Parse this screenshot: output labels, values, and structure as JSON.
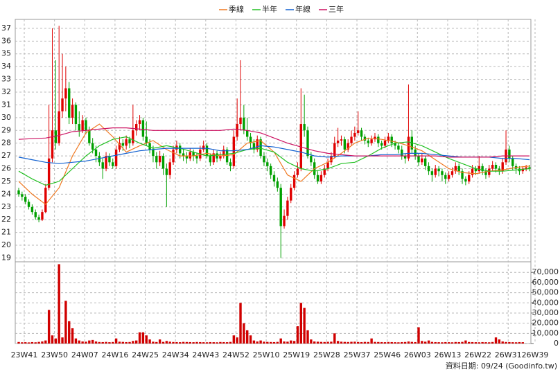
{
  "chart_data": {
    "type": "candlestick",
    "up_color": "#e00000",
    "down_color": "#00a000",
    "volume_color": "#d00000",
    "ylim": [
      18.7,
      37.7
    ],
    "yticks": [
      19,
      20,
      21,
      22,
      23,
      24,
      25,
      26,
      27,
      28,
      29,
      30,
      31,
      32,
      33,
      34,
      35,
      36,
      37
    ],
    "volume_lim": [
      0,
      79000
    ],
    "volume_ticks": [
      0,
      {
        "value": 10000,
        "label": "10,000"
      },
      {
        "value": 20000,
        "label": "20,000"
      },
      {
        "value": 30000,
        "label": "30,000"
      },
      {
        "value": 40000,
        "label": "40,000"
      },
      {
        "value": 50000,
        "label": "50,000"
      },
      {
        "value": 60000,
        "label": "60,000"
      },
      {
        "value": 70000,
        "label": "70,000"
      }
    ],
    "xlim": [
      0,
      152
    ],
    "xticks": [
      {
        "value": 0,
        "label": "23W41"
      },
      {
        "value": 9,
        "label": "23W50"
      },
      {
        "value": 18,
        "label": "24W07"
      },
      {
        "value": 27,
        "label": "24W16"
      },
      {
        "value": 36,
        "label": "24W25"
      },
      {
        "value": 45,
        "label": "24W34"
      },
      {
        "value": 54,
        "label": "24W43"
      },
      {
        "value": 63,
        "label": "24W52"
      },
      {
        "value": 72,
        "label": "25W10"
      },
      {
        "value": 81,
        "label": "25W19"
      },
      {
        "value": 90,
        "label": "25W28"
      },
      {
        "value": 99,
        "label": "25W37"
      },
      {
        "value": 108,
        "label": "25W46"
      },
      {
        "value": 117,
        "label": "26W03"
      },
      {
        "value": 126,
        "label": "26W13"
      },
      {
        "value": 135,
        "label": "26W22"
      },
      {
        "value": 144,
        "label": "26W31"
      },
      {
        "value": 152,
        "label": "26W39"
      }
    ],
    "grid": true,
    "footer": "資料日期: 09/24 (Goodinfo.tw)",
    "ohlc": [
      [
        24.3,
        24.5,
        23.8,
        24.0
      ],
      [
        24.0,
        24.2,
        23.5,
        23.8
      ],
      [
        23.8,
        24.0,
        23.2,
        23.4
      ],
      [
        23.4,
        23.6,
        22.8,
        23.0
      ],
      [
        23.0,
        23.2,
        22.4,
        22.6
      ],
      [
        22.6,
        22.8,
        22.0,
        22.2
      ],
      [
        22.2,
        22.4,
        21.8,
        22.0
      ],
      [
        22.0,
        22.8,
        21.9,
        22.6
      ],
      [
        22.6,
        24.8,
        22.5,
        24.5
      ],
      [
        24.5,
        31.0,
        24.3,
        26.8
      ],
      [
        26.8,
        37.0,
        26.5,
        29.0
      ],
      [
        29.0,
        34.5,
        27.5,
        28.0
      ],
      [
        28.0,
        37.2,
        27.8,
        30.5
      ],
      [
        30.5,
        35.0,
        30.0,
        31.5
      ],
      [
        31.5,
        34.0,
        30.5,
        32.3
      ],
      [
        32.3,
        32.8,
        29.5,
        30.0
      ],
      [
        30.0,
        31.5,
        29.5,
        31.0
      ],
      [
        31.0,
        31.2,
        29.0,
        29.5
      ],
      [
        29.5,
        30.5,
        28.5,
        29.0
      ],
      [
        29.0,
        30.2,
        28.8,
        29.8
      ],
      [
        29.8,
        30.0,
        28.7,
        29.0
      ],
      [
        29.0,
        29.3,
        27.8,
        28.0
      ],
      [
        28.0,
        28.4,
        27.2,
        27.5
      ],
      [
        27.5,
        27.8,
        26.5,
        27.0
      ],
      [
        27.0,
        27.3,
        26.2,
        26.5
      ],
      [
        26.5,
        26.8,
        25.2,
        26.0
      ],
      [
        26.0,
        27.3,
        25.8,
        27.0
      ],
      [
        27.0,
        27.2,
        26.2,
        26.5
      ],
      [
        26.5,
        26.8,
        26.0,
        26.2
      ],
      [
        26.2,
        27.8,
        26.0,
        27.5
      ],
      [
        27.5,
        28.5,
        27.3,
        28.0
      ],
      [
        28.0,
        28.3,
        27.4,
        27.8
      ],
      [
        27.8,
        28.6,
        27.5,
        28.3
      ],
      [
        28.3,
        28.5,
        27.6,
        28.0
      ],
      [
        28.0,
        31.0,
        27.8,
        29.0
      ],
      [
        29.0,
        29.8,
        28.6,
        29.5
      ],
      [
        29.5,
        30.2,
        29.0,
        29.8
      ],
      [
        29.8,
        30.0,
        28.2,
        28.5
      ],
      [
        28.5,
        29.7,
        27.8,
        28.0
      ],
      [
        28.0,
        28.3,
        27.2,
        27.5
      ],
      [
        27.5,
        27.8,
        26.5,
        27.0
      ],
      [
        27.0,
        27.3,
        26.0,
        26.5
      ],
      [
        26.5,
        27.4,
        26.2,
        27.0
      ],
      [
        27.0,
        27.2,
        25.5,
        26.0
      ],
      [
        26.0,
        26.4,
        23.0,
        25.5
      ],
      [
        25.5,
        26.8,
        25.2,
        26.5
      ],
      [
        26.5,
        27.8,
        26.3,
        27.5
      ],
      [
        27.5,
        28.2,
        27.2,
        27.8
      ],
      [
        27.8,
        28.0,
        26.8,
        27.2
      ],
      [
        27.2,
        27.5,
        26.6,
        27.0
      ],
      [
        27.0,
        27.3,
        26.4,
        26.8
      ],
      [
        26.8,
        27.6,
        26.6,
        27.3
      ],
      [
        27.3,
        27.5,
        26.6,
        27.0
      ],
      [
        27.0,
        27.2,
        26.4,
        26.8
      ],
      [
        26.8,
        27.8,
        26.6,
        27.5
      ],
      [
        27.5,
        28.2,
        27.3,
        27.8
      ],
      [
        27.8,
        28.0,
        26.8,
        27.0
      ],
      [
        27.0,
        27.2,
        26.2,
        26.5
      ],
      [
        26.5,
        27.5,
        26.3,
        27.2
      ],
      [
        27.2,
        27.4,
        26.5,
        26.8
      ],
      [
        26.8,
        27.3,
        26.6,
        27.0
      ],
      [
        27.0,
        27.8,
        26.8,
        27.5
      ],
      [
        27.5,
        27.7,
        26.3,
        26.5
      ],
      [
        26.5,
        26.8,
        25.8,
        26.2
      ],
      [
        26.2,
        29.0,
        26.0,
        28.5
      ],
      [
        28.5,
        31.5,
        28.2,
        29.5
      ],
      [
        29.5,
        34.5,
        29.0,
        30.0
      ],
      [
        30.0,
        31.0,
        28.7,
        29.0
      ],
      [
        29.0,
        30.0,
        28.2,
        28.5
      ],
      [
        28.5,
        28.8,
        27.6,
        28.0
      ],
      [
        28.0,
        28.3,
        27.2,
        27.5
      ],
      [
        27.5,
        28.6,
        27.3,
        28.3
      ],
      [
        28.3,
        28.5,
        26.8,
        27.0
      ],
      [
        27.0,
        27.3,
        26.2,
        26.5
      ],
      [
        26.5,
        26.8,
        25.8,
        26.2
      ],
      [
        26.2,
        26.4,
        25.2,
        25.5
      ],
      [
        25.5,
        25.8,
        24.6,
        25.0
      ],
      [
        25.0,
        25.3,
        24.2,
        24.5
      ],
      [
        24.5,
        24.8,
        19.0,
        21.5
      ],
      [
        21.5,
        22.8,
        21.3,
        22.3
      ],
      [
        22.3,
        23.8,
        22.0,
        23.5
      ],
      [
        23.5,
        24.8,
        23.3,
        24.5
      ],
      [
        24.5,
        25.8,
        24.3,
        25.5
      ],
      [
        25.5,
        26.5,
        25.3,
        26.0
      ],
      [
        26.0,
        32.3,
        25.8,
        29.5
      ],
      [
        29.5,
        31.8,
        28.5,
        29.0
      ],
      [
        29.0,
        29.3,
        26.8,
        27.0
      ],
      [
        27.0,
        27.3,
        26.2,
        26.5
      ],
      [
        26.5,
        26.8,
        25.2,
        25.5
      ],
      [
        25.5,
        25.8,
        24.8,
        25.0
      ],
      [
        25.0,
        25.8,
        24.8,
        25.5
      ],
      [
        25.5,
        26.3,
        25.3,
        26.0
      ],
      [
        26.0,
        26.8,
        25.8,
        26.5
      ],
      [
        26.5,
        27.3,
        26.3,
        27.0
      ],
      [
        27.0,
        28.5,
        26.8,
        28.0
      ],
      [
        28.0,
        29.2,
        27.7,
        28.2
      ],
      [
        28.2,
        28.6,
        27.8,
        28.3
      ],
      [
        28.3,
        28.5,
        27.2,
        27.5
      ],
      [
        27.5,
        28.3,
        27.3,
        28.0
      ],
      [
        28.0,
        29.0,
        27.8,
        28.5
      ],
      [
        28.5,
        29.3,
        28.2,
        28.8
      ],
      [
        28.8,
        30.5,
        28.6,
        29.0
      ],
      [
        29.0,
        29.2,
        28.2,
        28.5
      ],
      [
        28.5,
        28.7,
        27.9,
        28.2
      ],
      [
        28.2,
        28.4,
        27.7,
        28.0
      ],
      [
        28.0,
        28.6,
        27.8,
        28.3
      ],
      [
        28.3,
        28.8,
        28.1,
        28.5
      ],
      [
        28.5,
        28.7,
        27.7,
        28.0
      ],
      [
        28.0,
        28.2,
        27.5,
        27.8
      ],
      [
        27.8,
        28.5,
        27.6,
        28.2
      ],
      [
        28.2,
        28.8,
        28.0,
        28.5
      ],
      [
        28.5,
        28.7,
        27.7,
        28.0
      ],
      [
        28.0,
        28.2,
        27.5,
        27.8
      ],
      [
        27.8,
        28.0,
        27.2,
        27.5
      ],
      [
        27.5,
        27.8,
        26.7,
        27.0
      ],
      [
        27.0,
        27.2,
        26.4,
        26.8
      ],
      [
        26.8,
        32.6,
        26.6,
        28.5
      ],
      [
        28.5,
        29.0,
        27.2,
        27.5
      ],
      [
        27.5,
        27.8,
        26.7,
        27.0
      ],
      [
        27.0,
        27.2,
        26.2,
        26.5
      ],
      [
        26.5,
        27.2,
        26.3,
        26.8
      ],
      [
        26.8,
        27.0,
        25.9,
        26.2
      ],
      [
        26.2,
        26.5,
        25.5,
        25.8
      ],
      [
        25.8,
        26.0,
        25.0,
        25.5
      ],
      [
        25.5,
        26.3,
        25.3,
        26.0
      ],
      [
        26.0,
        26.2,
        25.4,
        25.8
      ],
      [
        25.8,
        26.0,
        25.0,
        25.5
      ],
      [
        25.5,
        25.7,
        24.8,
        25.2
      ],
      [
        25.2,
        25.8,
        25.0,
        25.5
      ],
      [
        25.5,
        26.1,
        25.3,
        25.8
      ],
      [
        25.8,
        26.5,
        25.6,
        26.2
      ],
      [
        26.2,
        26.4,
        25.5,
        25.8
      ],
      [
        25.8,
        26.0,
        24.8,
        25.2
      ],
      [
        25.2,
        25.4,
        24.7,
        25.0
      ],
      [
        25.0,
        25.8,
        24.8,
        25.5
      ],
      [
        25.5,
        26.3,
        25.3,
        26.0
      ],
      [
        26.0,
        26.2,
        25.5,
        25.8
      ],
      [
        25.8,
        27.0,
        25.6,
        26.2
      ],
      [
        26.2,
        26.4,
        25.5,
        25.8
      ],
      [
        25.8,
        26.0,
        25.2,
        25.5
      ],
      [
        25.5,
        26.3,
        25.3,
        26.0
      ],
      [
        26.0,
        26.6,
        25.8,
        26.3
      ],
      [
        26.3,
        26.5,
        25.7,
        26.0
      ],
      [
        26.0,
        26.2,
        25.5,
        25.8
      ],
      [
        25.8,
        26.8,
        25.6,
        26.5
      ],
      [
        26.5,
        29.0,
        26.3,
        27.5
      ],
      [
        27.5,
        27.8,
        26.5,
        26.8
      ],
      [
        26.8,
        27.0,
        25.9,
        26.2
      ],
      [
        26.2,
        26.4,
        25.6,
        26.0
      ],
      [
        26.0,
        26.2,
        25.5,
        25.8
      ],
      [
        25.8,
        26.2,
        25.6,
        26.0
      ],
      [
        26.0,
        26.3,
        25.8,
        26.1
      ],
      [
        26.1,
        26.3,
        25.8,
        26.0
      ]
    ],
    "volume": [
      1500,
      1200,
      1300,
      1100,
      1400,
      1200,
      1600,
      2000,
      3000,
      33000,
      8000,
      5000,
      78000,
      6000,
      42000,
      22000,
      15000,
      5000,
      3000,
      2000,
      1800,
      3000,
      3500,
      2000,
      1500,
      1400,
      1600,
      1300,
      1500,
      5000,
      1800,
      1600,
      1400,
      1500,
      2500,
      3000,
      11000,
      11000,
      8000,
      4000,
      1800,
      1500,
      4000,
      1600,
      2500,
      1800,
      1500,
      1400,
      1300,
      1600,
      1500,
      1400,
      1300,
      1500,
      1400,
      1300,
      1200,
      1400,
      1300,
      1200,
      1500,
      1400,
      1300,
      1600,
      8000,
      6000,
      40000,
      20000,
      13000,
      8000,
      3000,
      2000,
      3000,
      1800,
      1600,
      1500,
      1400,
      1600,
      5000,
      2000,
      1800,
      3000,
      2500,
      17000,
      40000,
      35000,
      13000,
      4000,
      2000,
      1800,
      1600,
      1500,
      1700,
      1800,
      10000,
      2500,
      1800,
      1600,
      1500,
      1700,
      1800,
      1500,
      1400,
      1600,
      1500,
      5000,
      1600,
      1500,
      1400,
      1300,
      1500,
      1400,
      1300,
      1200,
      1400,
      1500,
      2000,
      1600,
      1400,
      16000,
      2500,
      1800,
      3000,
      1600,
      1400,
      1300,
      1200,
      1400,
      1300,
      1200,
      1500,
      1400,
      1600,
      3000,
      1500,
      1400,
      1300,
      1200,
      1400,
      1300,
      1200,
      1500,
      6000,
      4000,
      2000,
      1500,
      1400,
      1300,
      1200,
      1400,
      1300
    ],
    "ma_x": [
      0,
      4,
      8,
      12,
      16,
      20,
      24,
      28,
      32,
      36,
      40,
      44,
      48,
      52,
      56,
      60,
      64,
      68,
      72,
      76,
      80,
      84,
      88,
      92,
      96,
      100,
      104,
      108,
      112,
      116,
      120,
      124,
      128,
      132,
      136,
      140,
      144,
      148,
      152
    ],
    "series": [
      {
        "name": "季線",
        "color": "#f07820",
        "values": [
          25.0,
          24.0,
          23.2,
          24.5,
          27.0,
          28.8,
          29.5,
          28.5,
          27.3,
          27.8,
          28.2,
          27.5,
          27.0,
          27.0,
          27.2,
          27.0,
          27.1,
          28.0,
          28.2,
          27.3,
          25.5,
          25.0,
          26.0,
          26.5,
          27.2,
          28.0,
          28.4,
          28.3,
          28.1,
          27.8,
          27.4,
          26.7,
          26.0,
          25.7,
          25.6,
          25.8,
          25.9,
          26.1,
          26.2
        ]
      },
      {
        "name": "半年",
        "color": "#22c022",
        "values": [
          25.8,
          25.2,
          24.7,
          25.0,
          26.0,
          27.0,
          27.8,
          28.3,
          28.5,
          28.0,
          27.6,
          27.8,
          27.6,
          27.3,
          27.0,
          27.1,
          27.2,
          27.5,
          27.6,
          27.3,
          26.5,
          26.0,
          25.8,
          26.0,
          26.4,
          26.5,
          27.0,
          27.6,
          28.0,
          28.1,
          27.8,
          27.3,
          26.8,
          26.4,
          26.0,
          25.8,
          25.8,
          25.9,
          26.0
        ]
      },
      {
        "name": "年線",
        "color": "#1060d0",
        "values": [
          26.9,
          26.7,
          26.5,
          26.4,
          26.5,
          26.6,
          26.8,
          27.0,
          27.2,
          27.4,
          27.5,
          27.6,
          27.6,
          27.6,
          27.6,
          27.4,
          27.4,
          27.5,
          27.8,
          27.7,
          27.5,
          27.3,
          27.0,
          26.9,
          27.0,
          27.0,
          27.0,
          27.1,
          27.1,
          27.2,
          27.2,
          27.1,
          27.0,
          26.9,
          26.9,
          26.9,
          26.8,
          26.8,
          26.7
        ]
      },
      {
        "name": "三年",
        "color": "#cc1060",
        "values": [
          28.3,
          28.35,
          28.4,
          28.6,
          28.9,
          29.0,
          29.1,
          29.2,
          29.2,
          29.1,
          29.0,
          29.0,
          29.0,
          29.0,
          29.0,
          29.0,
          29.1,
          29.0,
          28.8,
          28.4,
          28.0,
          27.7,
          27.4,
          27.2,
          27.1,
          27.0,
          27.0,
          27.0,
          27.0,
          27.0,
          27.0,
          27.0,
          26.9,
          26.9,
          26.9,
          26.9,
          27.0,
          27.0,
          27.0
        ]
      }
    ]
  }
}
